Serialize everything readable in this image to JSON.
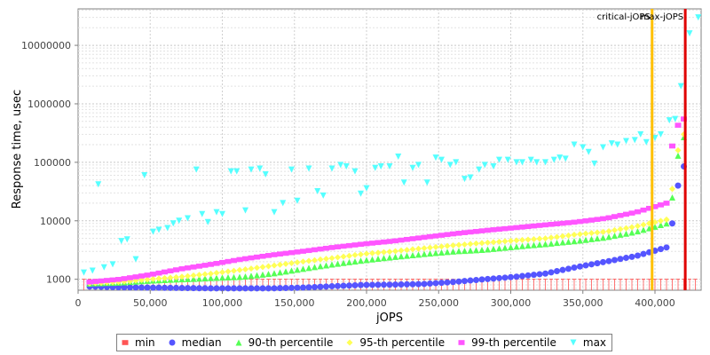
{
  "chart_data": {
    "type": "scatter",
    "title": "",
    "xlabel": "jOPS",
    "ylabel": "Response time, usec",
    "xlim": [
      0,
      432000
    ],
    "ylim": [
      650,
      42000000
    ],
    "y_scale": "log",
    "grid": true,
    "x_ticks": [
      {
        "value": 0,
        "label": "0"
      },
      {
        "value": 50000,
        "label": "50,000"
      },
      {
        "value": 100000,
        "label": "100,000"
      },
      {
        "value": 150000,
        "label": "150,000"
      },
      {
        "value": 200000,
        "label": "200,000"
      },
      {
        "value": 250000,
        "label": "250,000"
      },
      {
        "value": 300000,
        "label": "300,000"
      },
      {
        "value": 350000,
        "label": "350,000"
      },
      {
        "value": 400000,
        "label": "400,000"
      }
    ],
    "y_ticks": [
      {
        "value": 1000,
        "label": "1000"
      },
      {
        "value": 10000,
        "label": "10000"
      },
      {
        "value": 100000,
        "label": "100000"
      },
      {
        "value": 1000000,
        "label": "1000000"
      },
      {
        "value": 10000000,
        "label": "10000000"
      }
    ],
    "markers": [
      {
        "label": "critical-jOPS",
        "x": 398000,
        "color": "#ffc000"
      },
      {
        "label": "max-jOPS",
        "x": 421000,
        "color": "#e00000"
      }
    ],
    "legend_position": "bottom",
    "series": [
      {
        "name": "min",
        "marker": "square",
        "color": "#ff5555",
        "x_start": 4000,
        "x_step": 4000,
        "count": 107,
        "base_values": [
          1000
        ],
        "tail": [
          1000
        ]
      },
      {
        "name": "median",
        "marker": "circle",
        "color": "#5555ff",
        "x_start": 8000,
        "x_step": 4000,
        "count": 104,
        "base_values": [
          750,
          730,
          720,
          710,
          700,
          700,
          700,
          720,
          760,
          800,
          810,
          830,
          900,
          1000,
          1100,
          1250,
          1600,
          2000,
          2500,
          3500
        ],
        "tail": [
          9000,
          40000,
          85000
        ]
      },
      {
        "name": "90-th percentile",
        "marker": "triangle-up",
        "color": "#55ff55",
        "x_start": 8000,
        "x_step": 4000,
        "count": 104,
        "base_values": [
          850,
          880,
          950,
          1000,
          1050,
          1100,
          1250,
          1500,
          1800,
          2100,
          2400,
          2700,
          3000,
          3200,
          3600,
          4000,
          4500,
          5200,
          6500,
          9000
        ],
        "tail": [
          25000,
          130000,
          270000
        ]
      },
      {
        "name": "95-th percentile",
        "marker": "diamond",
        "color": "#ffff55",
        "x_start": 8000,
        "x_step": 4000,
        "count": 104,
        "base_values": [
          850,
          900,
          1000,
          1100,
          1250,
          1450,
          1700,
          2000,
          2300,
          2700,
          3000,
          3400,
          3800,
          4200,
          4600,
          5000,
          5800,
          6500,
          8000,
          10500
        ],
        "tail": [
          35000,
          160000,
          300000
        ]
      },
      {
        "name": "99-th percentile",
        "marker": "square",
        "color": "#ff55ff",
        "x_start": 8000,
        "x_step": 4000,
        "count": 104,
        "base_values": [
          900,
          1000,
          1200,
          1500,
          1800,
          2200,
          2600,
          3000,
          3500,
          4000,
          4500,
          5200,
          6000,
          6800,
          7600,
          8500,
          9500,
          11000,
          14000,
          20000
        ],
        "tail": [
          190000,
          430000,
          550000
        ]
      },
      {
        "name": "max",
        "marker": "triangle-down",
        "color": "#55ffff",
        "points": [
          [
            4000,
            1300
          ],
          [
            10000,
            1400
          ],
          [
            14000,
            42000
          ],
          [
            18000,
            1600
          ],
          [
            24000,
            1800
          ],
          [
            30000,
            4500
          ],
          [
            34000,
            4800
          ],
          [
            40000,
            2200
          ],
          [
            46000,
            60000
          ],
          [
            52000,
            6500
          ],
          [
            56000,
            7000
          ],
          [
            62000,
            7500
          ],
          [
            66000,
            9000
          ],
          [
            70000,
            10000
          ],
          [
            76000,
            11000
          ],
          [
            82000,
            75000
          ],
          [
            86000,
            13000
          ],
          [
            90000,
            9500
          ],
          [
            96000,
            14000
          ],
          [
            100000,
            13000
          ],
          [
            106000,
            70000
          ],
          [
            110000,
            70000
          ],
          [
            116000,
            15000
          ],
          [
            120000,
            75000
          ],
          [
            126000,
            78000
          ],
          [
            130000,
            62000
          ],
          [
            136000,
            14000
          ],
          [
            142000,
            20000
          ],
          [
            148000,
            75000
          ],
          [
            152000,
            22000
          ],
          [
            160000,
            78000
          ],
          [
            166000,
            32000
          ],
          [
            170000,
            27000
          ],
          [
            176000,
            78000
          ],
          [
            182000,
            90000
          ],
          [
            186000,
            85000
          ],
          [
            192000,
            70000
          ],
          [
            196000,
            29000
          ],
          [
            200000,
            36000
          ],
          [
            206000,
            80000
          ],
          [
            210000,
            85000
          ],
          [
            216000,
            85000
          ],
          [
            222000,
            125000
          ],
          [
            226000,
            45000
          ],
          [
            232000,
            80000
          ],
          [
            236000,
            90000
          ],
          [
            242000,
            45000
          ],
          [
            248000,
            120000
          ],
          [
            252000,
            110000
          ],
          [
            258000,
            90000
          ],
          [
            262000,
            100000
          ],
          [
            268000,
            52000
          ],
          [
            272000,
            55000
          ],
          [
            278000,
            75000
          ],
          [
            282000,
            90000
          ],
          [
            288000,
            85000
          ],
          [
            292000,
            110000
          ],
          [
            298000,
            110000
          ],
          [
            304000,
            100000
          ],
          [
            308000,
            100000
          ],
          [
            314000,
            110000
          ],
          [
            318000,
            100000
          ],
          [
            324000,
            100000
          ],
          [
            330000,
            110000
          ],
          [
            334000,
            120000
          ],
          [
            338000,
            115000
          ],
          [
            344000,
            200000
          ],
          [
            350000,
            180000
          ],
          [
            354000,
            150000
          ],
          [
            358000,
            95000
          ],
          [
            364000,
            180000
          ],
          [
            370000,
            210000
          ],
          [
            374000,
            200000
          ],
          [
            380000,
            230000
          ],
          [
            386000,
            240000
          ],
          [
            390000,
            300000
          ],
          [
            394000,
            220000
          ],
          [
            400000,
            260000
          ],
          [
            404000,
            300000
          ],
          [
            410000,
            520000
          ],
          [
            414000,
            550000
          ],
          [
            418000,
            2000000
          ],
          [
            424000,
            16000000
          ],
          [
            430000,
            30000000
          ]
        ]
      }
    ]
  }
}
